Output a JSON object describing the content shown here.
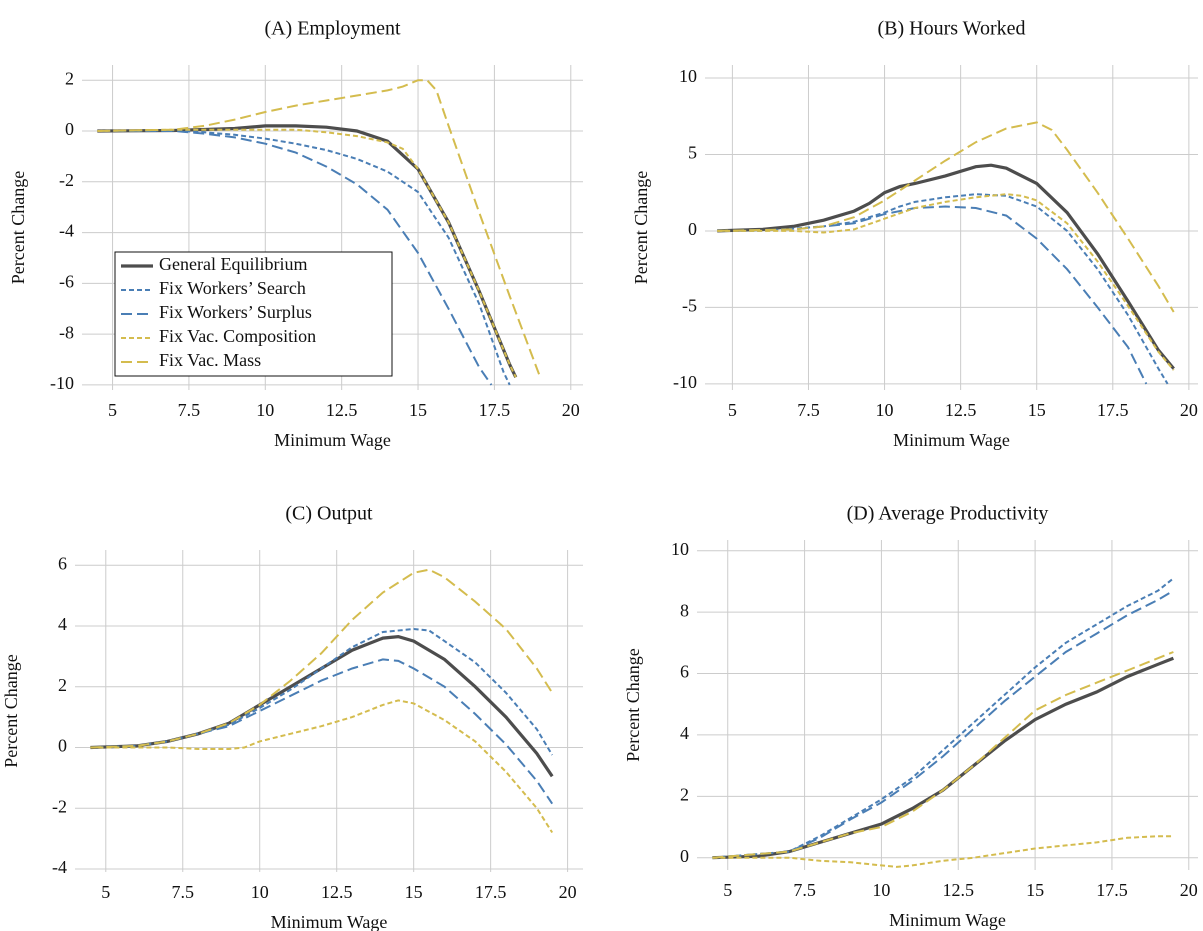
{
  "chart_data": [
    {
      "type": "line",
      "title": "(A) Employment",
      "xlabel": "Minimum Wage",
      "ylabel": "Percent Change",
      "xlim": [
        4,
        20.4
      ],
      "ylim": [
        -10.2,
        2.6
      ],
      "xticks": [
        5,
        7.5,
        10,
        12.5,
        15,
        17.5,
        20
      ],
      "yticks": [
        2,
        0,
        -2,
        -4,
        -6,
        -8,
        -10
      ],
      "grid": true,
      "legend": "lower left",
      "series": [
        {
          "name": "General Equilibrium",
          "color": "#4d4d4d",
          "dash": "solid",
          "x": [
            4.5,
            7,
            9,
            10,
            11,
            12,
            13,
            14,
            15,
            16,
            17,
            18,
            18.2
          ],
          "values": [
            0,
            0.02,
            0.1,
            0.2,
            0.2,
            0.15,
            0,
            -0.4,
            -1.5,
            -3.6,
            -6.3,
            -9.2,
            -9.7
          ]
        },
        {
          "name": "Fix Workers’ Search",
          "color": "#4a7eb5",
          "dash": "short",
          "x": [
            4.5,
            7,
            8,
            9,
            10,
            11,
            12,
            13,
            14,
            15,
            16,
            17,
            17.8,
            18
          ],
          "values": [
            0,
            0.02,
            -0.05,
            -0.15,
            -0.3,
            -0.5,
            -0.75,
            -1.1,
            -1.6,
            -2.4,
            -4.2,
            -6.8,
            -9.5,
            -10
          ]
        },
        {
          "name": "Fix Workers’ Surplus",
          "color": "#4a7eb5",
          "dash": "long",
          "x": [
            4.5,
            7,
            8,
            9,
            10,
            11,
            12,
            13,
            14,
            15,
            16,
            17,
            17.4
          ],
          "values": [
            0,
            0,
            -0.1,
            -0.25,
            -0.5,
            -0.85,
            -1.4,
            -2.1,
            -3.1,
            -4.8,
            -7,
            -9.3,
            -10
          ]
        },
        {
          "name": "Fix Vac. Composition",
          "color": "#d4bc4e",
          "dash": "short",
          "x": [
            4.5,
            7,
            8,
            9,
            10,
            11,
            12,
            13,
            14,
            14.5,
            15,
            16,
            17,
            18,
            18.2
          ],
          "values": [
            0,
            0.05,
            0.05,
            0.05,
            0.05,
            0.05,
            -0.05,
            -0.2,
            -0.45,
            -0.7,
            -1.5,
            -3.6,
            -6.3,
            -9.2,
            -9.7
          ]
        },
        {
          "name": "Fix Vac. Mass",
          "color": "#d4bc4e",
          "dash": "long",
          "x": [
            4.5,
            7,
            8,
            9,
            10,
            11,
            12,
            13,
            14,
            14.5,
            15,
            15.3,
            15.6,
            16,
            17,
            18,
            19
          ],
          "values": [
            0,
            0.05,
            0.2,
            0.45,
            0.75,
            1.0,
            1.2,
            1.4,
            1.6,
            1.75,
            2.0,
            2.0,
            1.6,
            0.2,
            -3.2,
            -6.5,
            -9.7
          ]
        }
      ]
    },
    {
      "type": "line",
      "title": "(B) Hours Worked",
      "xlabel": "Minimum Wage",
      "ylabel": "Percent Change",
      "xlim": [
        4.1,
        20.3
      ],
      "ylim": [
        -10.4,
        10.85
      ],
      "xticks": [
        5,
        7.5,
        10,
        12.5,
        15,
        17.5,
        20
      ],
      "yticks": [
        10,
        5,
        0,
        -5,
        -10
      ],
      "grid": true,
      "series": [
        {
          "color": "#4d4d4d",
          "dash": "solid",
          "x": [
            4.5,
            6,
            7,
            8,
            9,
            9.5,
            10,
            10.5,
            11,
            12,
            13,
            13.5,
            14,
            15,
            16,
            17,
            18,
            19,
            19.5
          ],
          "values": [
            0,
            0.1,
            0.3,
            0.7,
            1.3,
            1.8,
            2.5,
            2.9,
            3.1,
            3.6,
            4.2,
            4.3,
            4.1,
            3.1,
            1.2,
            -1.5,
            -4.6,
            -7.8,
            -9
          ]
        },
        {
          "color": "#4a7eb5",
          "dash": "short",
          "x": [
            4.5,
            6,
            7,
            8,
            9,
            10,
            10.5,
            11,
            12,
            13,
            14,
            15,
            16,
            17,
            18,
            19,
            19.3
          ],
          "values": [
            0,
            0,
            0.15,
            0.3,
            0.6,
            1.2,
            1.6,
            1.9,
            2.2,
            2.4,
            2.3,
            1.6,
            0,
            -2.5,
            -5.5,
            -9,
            -10
          ]
        },
        {
          "color": "#4a7eb5",
          "dash": "long",
          "x": [
            4.5,
            7,
            8,
            9,
            10,
            11,
            12,
            13,
            14,
            15,
            16,
            17,
            18,
            18.6
          ],
          "values": [
            0,
            0.1,
            0.3,
            0.5,
            1.1,
            1.5,
            1.6,
            1.5,
            1.0,
            -0.5,
            -2.5,
            -5,
            -7.6,
            -10
          ]
        },
        {
          "color": "#d4bc4e",
          "dash": "short",
          "x": [
            4.5,
            7,
            8,
            9,
            10,
            11,
            12,
            13,
            14,
            14.5,
            15,
            16,
            17,
            18,
            19,
            19.5
          ],
          "values": [
            0,
            0,
            -0.1,
            0.1,
            0.8,
            1.5,
            1.9,
            2.2,
            2.4,
            2.3,
            2.0,
            0.5,
            -2,
            -4.9,
            -7.9,
            -9.1
          ]
        },
        {
          "color": "#d4bc4e",
          "dash": "long",
          "x": [
            4.5,
            7,
            8,
            9,
            10,
            11,
            12,
            13,
            14,
            15,
            15.5,
            16,
            17,
            18,
            19,
            19.5
          ],
          "values": [
            0,
            0.1,
            0.3,
            0.9,
            2.0,
            3.3,
            4.6,
            5.8,
            6.7,
            7.1,
            6.6,
            5.3,
            2.5,
            -0.5,
            -3.6,
            -5.3
          ]
        }
      ]
    },
    {
      "type": "line",
      "title": "(C) Output",
      "xlabel": "Minimum Wage",
      "ylabel": "Percent Change",
      "xlim": [
        4,
        20.5
      ],
      "ylim": [
        -4.1,
        6.5
      ],
      "xticks": [
        5,
        7.5,
        10,
        12.5,
        15,
        17.5,
        20
      ],
      "yticks": [
        6,
        4,
        2,
        0,
        -2,
        -4
      ],
      "grid": true,
      "series": [
        {
          "color": "#4d4d4d",
          "dash": "solid",
          "x": [
            4.5,
            6,
            7,
            8,
            9,
            10,
            11,
            12,
            13,
            14,
            14.5,
            15,
            16,
            17,
            18,
            19,
            19.5
          ],
          "values": [
            0,
            0.05,
            0.2,
            0.45,
            0.8,
            1.4,
            2.0,
            2.6,
            3.2,
            3.6,
            3.65,
            3.5,
            2.9,
            2.0,
            1.0,
            -0.2,
            -0.95
          ]
        },
        {
          "color": "#4a7eb5",
          "dash": "short",
          "x": [
            4.5,
            6,
            7,
            8,
            9,
            10,
            11,
            12,
            13,
            14,
            15,
            15.5,
            16,
            17,
            18,
            19,
            19.5
          ],
          "values": [
            0,
            0.05,
            0.2,
            0.45,
            0.75,
            1.3,
            1.9,
            2.6,
            3.3,
            3.8,
            3.9,
            3.85,
            3.5,
            2.8,
            1.8,
            0.6,
            -0.25
          ]
        },
        {
          "color": "#4a7eb5",
          "dash": "long",
          "x": [
            4.5,
            6,
            7,
            8,
            9,
            10,
            11,
            12,
            13,
            14,
            14.5,
            15,
            16,
            17,
            18,
            19,
            19.5
          ],
          "values": [
            0,
            0.05,
            0.2,
            0.45,
            0.7,
            1.2,
            1.7,
            2.2,
            2.6,
            2.9,
            2.85,
            2.6,
            2.0,
            1.1,
            0.1,
            -1.1,
            -1.85
          ]
        },
        {
          "color": "#d4bc4e",
          "dash": "short",
          "x": [
            4.5,
            7,
            8,
            9,
            9.5,
            10,
            11,
            12,
            13,
            14,
            14.5,
            15,
            16,
            17,
            18,
            19,
            19.5
          ],
          "values": [
            0,
            0,
            -0.05,
            -0.05,
            0,
            0.2,
            0.45,
            0.7,
            1.0,
            1.4,
            1.55,
            1.45,
            0.9,
            0.2,
            -0.8,
            -2.0,
            -2.8
          ]
        },
        {
          "color": "#d4bc4e",
          "dash": "long",
          "x": [
            4.5,
            6,
            7,
            8,
            9,
            10,
            11,
            12,
            13,
            14,
            15,
            15.5,
            16,
            17,
            18,
            19,
            19.5
          ],
          "values": [
            0,
            0.05,
            0.2,
            0.45,
            0.8,
            1.4,
            2.2,
            3.1,
            4.2,
            5.1,
            5.75,
            5.85,
            5.6,
            4.8,
            3.9,
            2.6,
            1.8
          ]
        }
      ]
    },
    {
      "type": "line",
      "title": "(D) Average Productivity",
      "xlabel": "Minimum Wage",
      "ylabel": "Percent Change",
      "xlim": [
        4,
        20.3
      ],
      "ylim": [
        -0.4,
        10.35
      ],
      "xticks": [
        5,
        7.5,
        10,
        12.5,
        15,
        17.5,
        20
      ],
      "yticks": [
        10,
        8,
        6,
        4,
        2,
        0
      ],
      "grid": true,
      "series": [
        {
          "color": "#4d4d4d",
          "dash": "solid",
          "x": [
            4.5,
            6,
            7,
            8,
            9,
            10,
            11,
            12,
            13,
            14,
            15,
            16,
            17,
            18,
            19,
            19.5
          ],
          "values": [
            0,
            0.05,
            0.2,
            0.5,
            0.8,
            1.1,
            1.6,
            2.2,
            3.0,
            3.8,
            4.5,
            5.0,
            5.4,
            5.9,
            6.3,
            6.5
          ]
        },
        {
          "color": "#4a7eb5",
          "dash": "short",
          "x": [
            4.5,
            7,
            8,
            9,
            10,
            11,
            12,
            13,
            14,
            15,
            16,
            17,
            18,
            19,
            19.5
          ],
          "values": [
            0,
            0.2,
            0.7,
            1.3,
            1.9,
            2.6,
            3.5,
            4.4,
            5.3,
            6.2,
            7.0,
            7.6,
            8.2,
            8.7,
            9.1
          ]
        },
        {
          "color": "#4a7eb5",
          "dash": "long",
          "x": [
            4.5,
            7,
            8,
            9,
            10,
            11,
            12,
            13,
            14,
            15,
            16,
            17,
            18,
            19,
            19.5
          ],
          "values": [
            0,
            0.2,
            0.65,
            1.25,
            1.8,
            2.5,
            3.3,
            4.2,
            5.1,
            5.9,
            6.7,
            7.3,
            7.9,
            8.4,
            8.7
          ]
        },
        {
          "color": "#d4bc4e",
          "dash": "short",
          "x": [
            4.5,
            7,
            8,
            9,
            10,
            10.5,
            11,
            12,
            13,
            14,
            15,
            16,
            17,
            18,
            19,
            19.5
          ],
          "values": [
            0,
            0,
            -0.1,
            -0.15,
            -0.25,
            -0.3,
            -0.25,
            -0.1,
            0,
            0.15,
            0.3,
            0.4,
            0.5,
            0.65,
            0.7,
            0.7
          ]
        },
        {
          "color": "#d4bc4e",
          "dash": "long",
          "x": [
            4.5,
            7,
            8,
            9,
            10,
            11,
            12,
            13,
            14,
            15,
            16,
            17,
            18,
            19,
            19.5
          ],
          "values": [
            0,
            0.2,
            0.5,
            0.8,
            1.0,
            1.5,
            2.2,
            3.0,
            3.9,
            4.8,
            5.3,
            5.7,
            6.1,
            6.5,
            6.7
          ]
        }
      ]
    }
  ]
}
